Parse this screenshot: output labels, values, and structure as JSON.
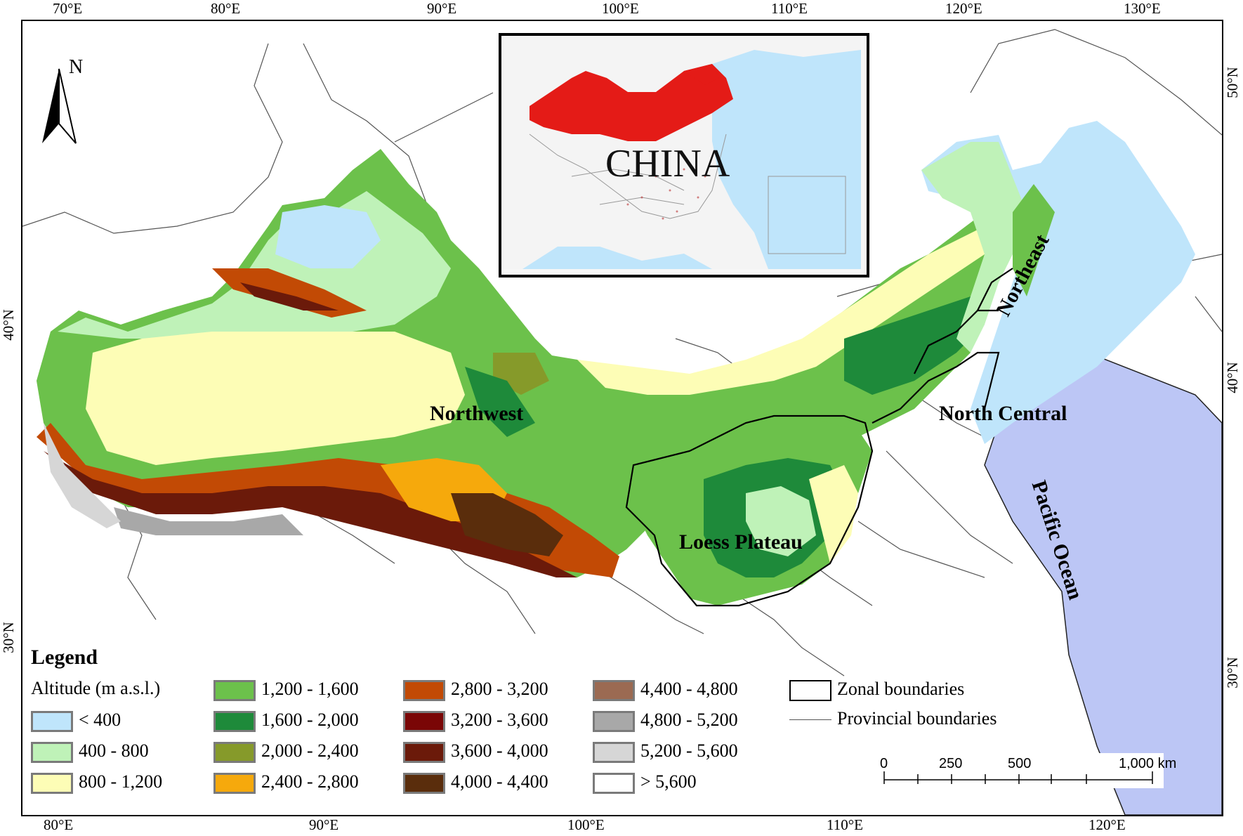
{
  "axes": {
    "top_lon": [
      "70°E",
      "80°E",
      "90°E",
      "100°E",
      "110°E",
      "120°E",
      "130°E"
    ],
    "bottom_lon": [
      "80°E",
      "90°E",
      "100°E",
      "110°E",
      "120°E"
    ],
    "left_lat": [
      "40°N",
      "30°N"
    ],
    "right_lat": [
      "50°N",
      "40°N",
      "30°N"
    ]
  },
  "north_arrow": {
    "label": "N"
  },
  "inset": {
    "title": "CHINA",
    "highlight_color": "#e41b17"
  },
  "regions": [
    "Northwest",
    "Northeast",
    "North Central",
    "Loess Plateau",
    "Pacific Ocean"
  ],
  "legend": {
    "title": "Legend",
    "subtitle": "Altitude (m a.s.l.)",
    "classes": [
      {
        "label": "< 400",
        "color": "#bfe5fb"
      },
      {
        "label": "400 - 800",
        "color": "#bff2b8"
      },
      {
        "label": "800 - 1,200",
        "color": "#fdfdb6"
      },
      {
        "label": "1,200 - 1,600",
        "color": "#6cc14b"
      },
      {
        "label": "1,600 - 2,000",
        "color": "#1e8a3a"
      },
      {
        "label": "2,000 - 2,400",
        "color": "#869a2a"
      },
      {
        "label": "2,400 - 2,800",
        "color": "#f6a90c"
      },
      {
        "label": "2,800 - 3,200",
        "color": "#c24a05"
      },
      {
        "label": "3,200 - 3,600",
        "color": "#7a0606"
      },
      {
        "label": "3,600 - 4,000",
        "color": "#6b1a0a"
      },
      {
        "label": "4,000 - 4,400",
        "color": "#5a2d0c"
      },
      {
        "label": "4,400 - 4,800",
        "color": "#9b6a52"
      },
      {
        "label": "4,800 - 5,200",
        "color": "#a8a8a8"
      },
      {
        "label": "5,200 - 5,600",
        "color": "#d6d6d6"
      },
      {
        "label": "> 5,600",
        "color": "#ffffff"
      }
    ],
    "zonal_label": "Zonal boundaries",
    "provincial_label": "Provincial boundaries"
  },
  "ocean_color": "#bcc6f5",
  "scale_bar": {
    "ticks": [
      "0",
      "250",
      "500",
      "1,000 km"
    ]
  }
}
